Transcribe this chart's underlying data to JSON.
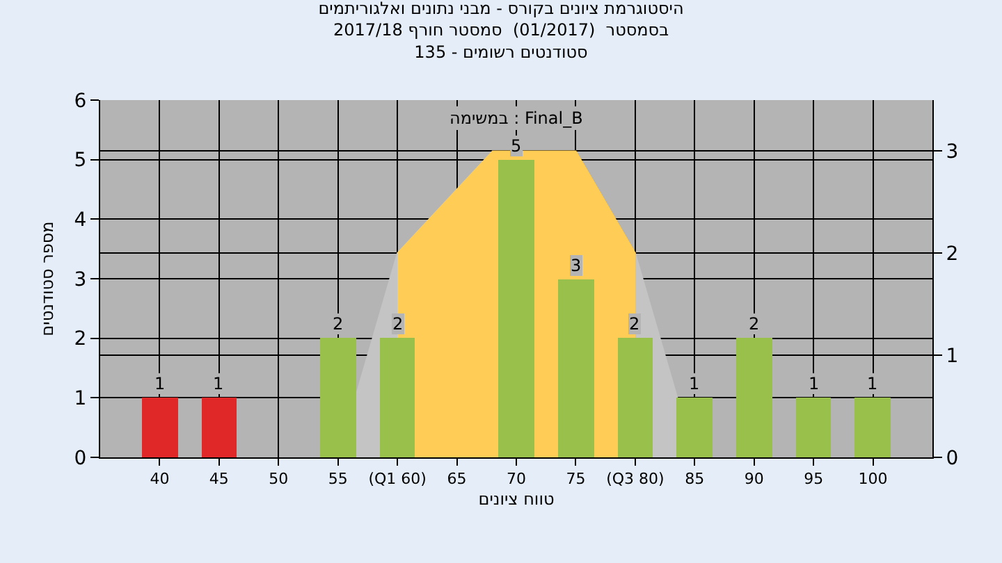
{
  "chart_data": {
    "type": "bar",
    "title": "היסטוגרמת ציונים בקורס - מבני נתונים ואלגוריתמים\nבסמסטר  (01/2017)  סמסטר חורף 2017/18\nסטודנטים רשומים - 135",
    "xlabel": "טווח ציונים",
    "ylabel": "מספר סטודנטים",
    "annotations": [
      "במשימה : Final_B"
    ],
    "xlim": [
      35,
      105
    ],
    "xticks": [
      40,
      45,
      50,
      55,
      {
        "value": 60,
        "label": "(Q1 60)"
      },
      65,
      70,
      75,
      {
        "value": 80,
        "label": "(Q3 80)"
      },
      85,
      90,
      95,
      100
    ],
    "ylim": [
      0,
      6
    ],
    "yticks": [
      0,
      1,
      2,
      3,
      4,
      5,
      6
    ],
    "y2lim": [
      0,
      3.5
    ],
    "y2ticks": [
      0,
      1,
      2,
      3
    ],
    "grid": true,
    "series": [
      {
        "type": "area",
        "axis": "y2",
        "color": "#c4c4c4",
        "x": [
          55,
          60,
          80,
          85
        ],
        "values": [
          0,
          2,
          2,
          0
        ]
      },
      {
        "type": "area",
        "axis": "y2",
        "color": "#ffcc55",
        "x": [
          60,
          68,
          75,
          80
        ],
        "values": [
          2,
          3,
          3,
          2
        ]
      },
      {
        "x": [
          40,
          45,
          50,
          55,
          60,
          65,
          70,
          75,
          80,
          85,
          90,
          95,
          100
        ],
        "values": [
          1,
          1,
          0,
          2,
          2,
          0,
          5,
          3,
          2,
          1,
          2,
          1,
          1
        ],
        "value_labels": [
          "1",
          "1",
          null,
          "2",
          "2",
          null,
          "5",
          "3",
          "2",
          "1",
          "2",
          "1",
          "1"
        ],
        "colors": [
          "#e02828",
          "#e02828",
          "#99c04a",
          "#99c04a",
          "#99c04a",
          "#99c04a",
          "#99c04a",
          "#99c04a",
          "#99c04a",
          "#99c04a",
          "#99c04a",
          "#99c04a",
          "#99c04a"
        ]
      }
    ]
  }
}
